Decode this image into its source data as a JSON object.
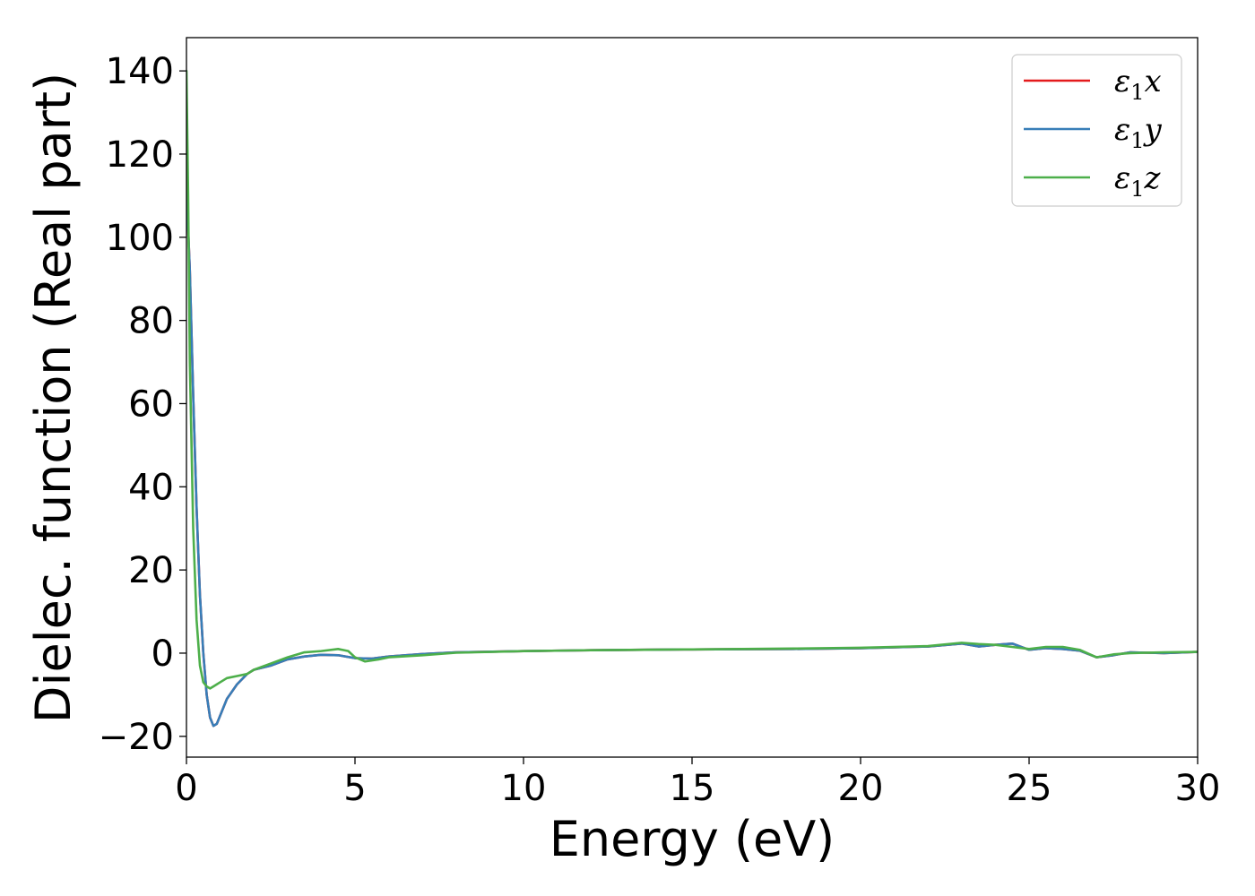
{
  "chart_data": {
    "type": "line",
    "title": "",
    "xlabel": "Energy (eV)",
    "ylabel": "Dielec. function (Real part)",
    "xlim": [
      0,
      30
    ],
    "ylim": [
      -25,
      148
    ],
    "xticks": [
      0,
      5,
      10,
      15,
      20,
      25,
      30
    ],
    "yticks": [
      -20,
      0,
      20,
      40,
      60,
      80,
      100,
      120,
      140
    ],
    "xtick_labels": [
      "0",
      "5",
      "10",
      "15",
      "20",
      "25",
      "30"
    ],
    "ytick_labels": [
      "−20",
      "0",
      "20",
      "40",
      "60",
      "80",
      "100",
      "120",
      "140"
    ],
    "grid": false,
    "legend_position": "top-right",
    "series": [
      {
        "name": "ε1x",
        "legend_base": "ε",
        "legend_sub": "1",
        "legend_var": "x",
        "color": "#e41a1c",
        "points": [
          [
            0,
            112
          ],
          [
            0.1,
            92
          ],
          [
            0.2,
            62
          ],
          [
            0.3,
            35
          ],
          [
            0.4,
            14
          ],
          [
            0.5,
            0
          ],
          [
            0.6,
            -10
          ],
          [
            0.7,
            -15.5
          ],
          [
            0.8,
            -17.5
          ],
          [
            0.9,
            -17
          ],
          [
            1.0,
            -15
          ],
          [
            1.2,
            -11
          ],
          [
            1.5,
            -7.5
          ],
          [
            1.8,
            -5
          ],
          [
            2.0,
            -4
          ],
          [
            2.5,
            -3
          ],
          [
            3.0,
            -1.5
          ],
          [
            3.5,
            -0.8
          ],
          [
            4.0,
            -0.4
          ],
          [
            4.5,
            -0.5
          ],
          [
            5.0,
            -1.2
          ],
          [
            5.5,
            -1.3
          ],
          [
            6.0,
            -0.8
          ],
          [
            7.0,
            -0.2
          ],
          [
            8.0,
            0.2
          ],
          [
            10.0,
            0.5
          ],
          [
            12.0,
            0.7
          ],
          [
            15.0,
            0.9
          ],
          [
            18.0,
            1.0
          ],
          [
            20.0,
            1.2
          ],
          [
            22.0,
            1.6
          ],
          [
            23.0,
            2.3
          ],
          [
            23.5,
            1.6
          ],
          [
            24.0,
            2.0
          ],
          [
            24.5,
            2.3
          ],
          [
            25.0,
            0.8
          ],
          [
            25.5,
            1.2
          ],
          [
            26.0,
            1.0
          ],
          [
            26.5,
            0.6
          ],
          [
            27.0,
            -1.0
          ],
          [
            27.5,
            -0.5
          ],
          [
            28.0,
            0.2
          ],
          [
            29.0,
            0.0
          ],
          [
            30.0,
            0.3
          ]
        ]
      },
      {
        "name": "ε1y",
        "legend_base": "ε",
        "legend_sub": "1",
        "legend_var": "y",
        "color": "#377eb8",
        "points": [
          [
            0,
            112
          ],
          [
            0.1,
            92
          ],
          [
            0.2,
            62
          ],
          [
            0.3,
            35
          ],
          [
            0.4,
            14
          ],
          [
            0.5,
            0
          ],
          [
            0.6,
            -10
          ],
          [
            0.7,
            -15.5
          ],
          [
            0.8,
            -17.5
          ],
          [
            0.9,
            -17
          ],
          [
            1.0,
            -15
          ],
          [
            1.2,
            -11
          ],
          [
            1.5,
            -7.5
          ],
          [
            1.8,
            -5
          ],
          [
            2.0,
            -4
          ],
          [
            2.5,
            -3
          ],
          [
            3.0,
            -1.5
          ],
          [
            3.5,
            -0.8
          ],
          [
            4.0,
            -0.4
          ],
          [
            4.5,
            -0.5
          ],
          [
            5.0,
            -1.2
          ],
          [
            5.5,
            -1.3
          ],
          [
            6.0,
            -0.8
          ],
          [
            7.0,
            -0.2
          ],
          [
            8.0,
            0.2
          ],
          [
            10.0,
            0.5
          ],
          [
            12.0,
            0.7
          ],
          [
            15.0,
            0.9
          ],
          [
            18.0,
            1.0
          ],
          [
            20.0,
            1.2
          ],
          [
            22.0,
            1.6
          ],
          [
            23.0,
            2.3
          ],
          [
            23.5,
            1.6
          ],
          [
            24.0,
            2.0
          ],
          [
            24.5,
            2.3
          ],
          [
            25.0,
            0.8
          ],
          [
            25.5,
            1.2
          ],
          [
            26.0,
            1.0
          ],
          [
            26.5,
            0.6
          ],
          [
            27.0,
            -1.0
          ],
          [
            27.5,
            -0.5
          ],
          [
            28.0,
            0.2
          ],
          [
            29.0,
            0.0
          ],
          [
            30.0,
            0.3
          ]
        ]
      },
      {
        "name": "ε1z",
        "legend_base": "ε",
        "legend_sub": "1",
        "legend_var": "z",
        "color": "#4daf4a",
        "points": [
          [
            0,
            140
          ],
          [
            0.05,
            110
          ],
          [
            0.1,
            70
          ],
          [
            0.2,
            30
          ],
          [
            0.3,
            8
          ],
          [
            0.4,
            -3
          ],
          [
            0.5,
            -7
          ],
          [
            0.6,
            -8
          ],
          [
            0.7,
            -8.5
          ],
          [
            0.8,
            -8
          ],
          [
            1.0,
            -7
          ],
          [
            1.2,
            -6
          ],
          [
            1.5,
            -5.5
          ],
          [
            1.8,
            -5
          ],
          [
            2.0,
            -4
          ],
          [
            2.5,
            -2.5
          ],
          [
            3.0,
            -1
          ],
          [
            3.5,
            0.2
          ],
          [
            4.0,
            0.5
          ],
          [
            4.5,
            1.0
          ],
          [
            4.8,
            0.5
          ],
          [
            5.0,
            -1.0
          ],
          [
            5.3,
            -2.0
          ],
          [
            5.7,
            -1.5
          ],
          [
            6.0,
            -1.0
          ],
          [
            7.0,
            -0.5
          ],
          [
            8.0,
            0.1
          ],
          [
            10.0,
            0.5
          ],
          [
            12.0,
            0.7
          ],
          [
            15.0,
            0.9
          ],
          [
            18.0,
            1.1
          ],
          [
            20.0,
            1.3
          ],
          [
            22.0,
            1.7
          ],
          [
            23.0,
            2.5
          ],
          [
            23.5,
            2.2
          ],
          [
            24.0,
            2.0
          ],
          [
            24.5,
            1.5
          ],
          [
            25.0,
            1.0
          ],
          [
            25.5,
            1.5
          ],
          [
            26.0,
            1.5
          ],
          [
            26.5,
            0.8
          ],
          [
            27.0,
            -1.0
          ],
          [
            27.5,
            -0.3
          ],
          [
            28.0,
            0.0
          ],
          [
            29.0,
            0.2
          ],
          [
            30.0,
            0.3
          ]
        ]
      }
    ]
  }
}
